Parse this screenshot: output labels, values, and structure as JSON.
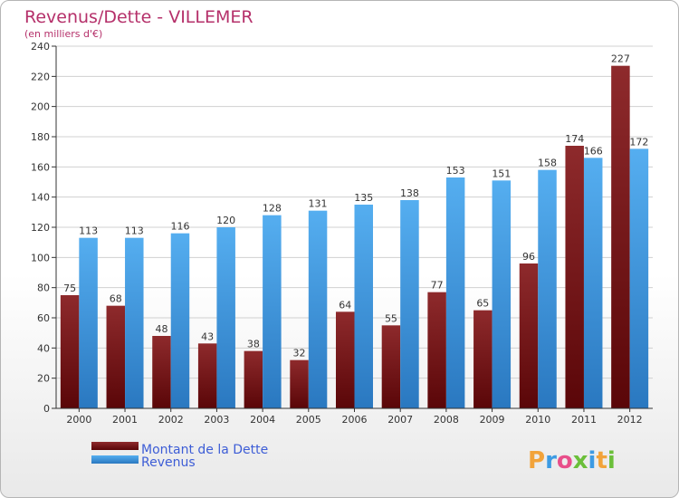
{
  "chart_data": {
    "type": "bar",
    "title": "Revenus/Dette - VILLEMER",
    "subtitle": "(en milliers d'€)",
    "categories": [
      "2000",
      "2001",
      "2002",
      "2003",
      "2004",
      "2005",
      "2006",
      "2007",
      "2008",
      "2009",
      "2010",
      "2011",
      "2012"
    ],
    "series": [
      {
        "name": "Montant de la Dette",
        "color": "#7a1a1c",
        "values": [
          75,
          68,
          48,
          43,
          38,
          32,
          64,
          55,
          77,
          65,
          96,
          174,
          227
        ]
      },
      {
        "name": "Revenus",
        "color": "#3d9be3",
        "values": [
          113,
          113,
          116,
          120,
          128,
          131,
          135,
          138,
          153,
          151,
          158,
          166,
          172
        ]
      }
    ],
    "ylim": [
      0,
      240
    ],
    "yticks": [
      0,
      20,
      40,
      60,
      80,
      100,
      120,
      140,
      160,
      180,
      200,
      220,
      240
    ],
    "grid": true,
    "legend": "bottom-left"
  },
  "logo": {
    "text": "Proxiti",
    "letters": [
      "P",
      "r",
      "o",
      "x",
      "i",
      "t",
      "i"
    ],
    "colors": [
      "#f2a33a",
      "#3d9be3",
      "#e84e8a",
      "#6bbf3a",
      "#3d9be3",
      "#f2a33a",
      "#6bbf3a"
    ]
  }
}
